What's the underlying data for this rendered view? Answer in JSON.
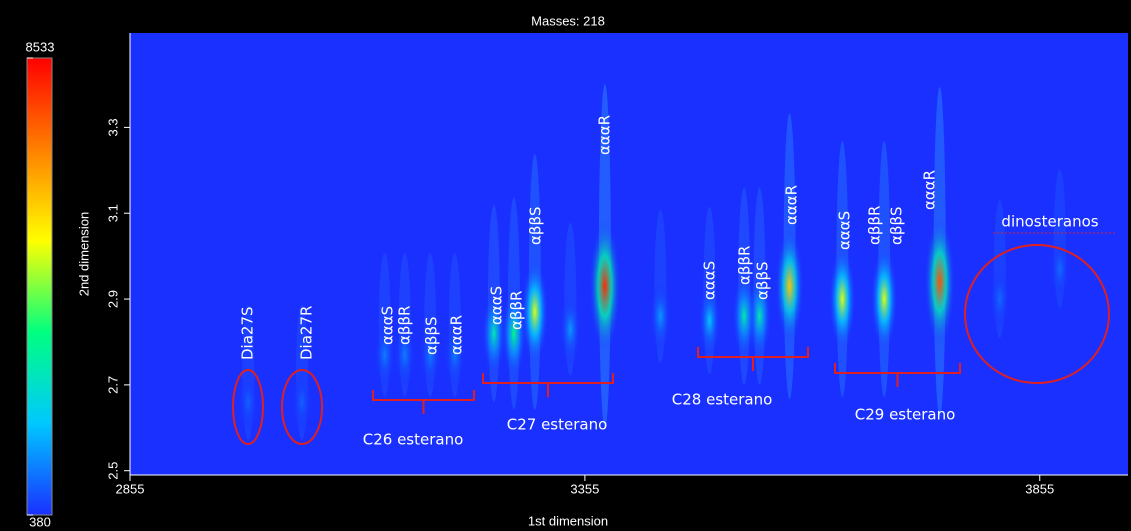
{
  "chart_data": {
    "type": "contour",
    "title": "Masses: 218",
    "xlabel": "1st dimension",
    "ylabel": "2nd dimension",
    "xlim": [
      2855,
      3952
    ],
    "ylim": [
      2.49,
      3.52
    ],
    "xticks": [
      2855,
      3355,
      3855
    ],
    "yticks": [
      2.5,
      2.7,
      2.9,
      3.1,
      3.3
    ],
    "colorbar": {
      "lim": [
        380,
        8533
      ],
      "ticks": [
        380,
        8533
      ],
      "colormap": [
        "#1a30ff",
        "#00c8ff",
        "#00ff80",
        "#ffff00",
        "#ff8000",
        "#ff0000"
      ]
    },
    "peaks": {
      "x": [
        3377,
        3300,
        3277,
        3255,
        3580,
        3547,
        3530,
        3492,
        3745,
        3684,
        3638,
        3339,
        3438,
        3135,
        3157,
        3185,
        3212,
        2985,
        3044,
        3811,
        3877
      ],
      "y": [
        2.93,
        2.87,
        2.82,
        2.82,
        2.93,
        2.86,
        2.86,
        2.85,
        2.94,
        2.9,
        2.9,
        2.83,
        2.86,
        2.77,
        2.77,
        2.77,
        2.77,
        2.66,
        2.66,
        2.9,
        2.97
      ],
      "values": [
        8000,
        5000,
        3500,
        3000,
        6000,
        3000,
        3000,
        2000,
        7500,
        5000,
        5000,
        1500,
        1500,
        1200,
        1200,
        1200,
        1200,
        900,
        900,
        1000,
        1000
      ]
    },
    "annotations": [
      "αααS",
      "αββR",
      "αββS",
      "αααR",
      "αααS",
      "αββR",
      "αββS",
      "αααR",
      "αααS",
      "αββR",
      "αββS",
      "αααR",
      "αααS",
      "αββR",
      "αββS",
      "αααR",
      "Dia27S",
      "Dia27R",
      "C26 esterano",
      "C27 esterano",
      "C28 esterano",
      "C29 esterano",
      "dinosteranos"
    ]
  }
}
